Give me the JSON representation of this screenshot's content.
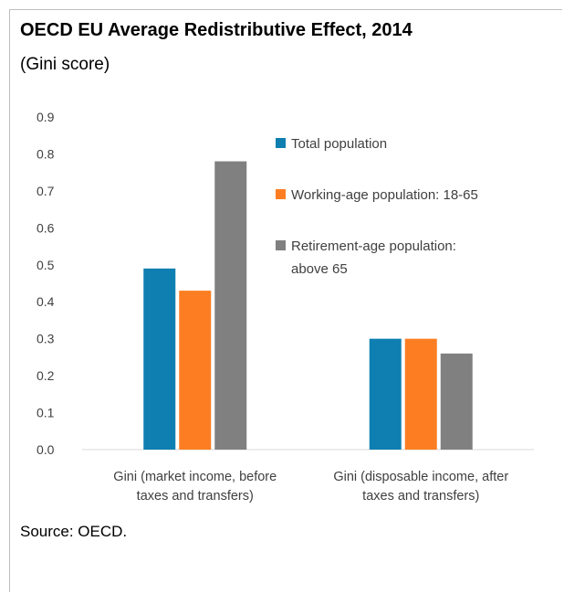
{
  "chart_data": {
    "type": "bar",
    "title": "OECD EU Average Redistributive Effect, 2014",
    "subtitle": "(Gini score)",
    "source": "Source: OECD.",
    "categories": [
      [
        "Gini (market income, before",
        "taxes and transfers)"
      ],
      [
        "Gini (disposable income, after",
        "taxes and transfers)"
      ]
    ],
    "series": [
      {
        "name": [
          "Total population"
        ],
        "color": "#0e7fb0",
        "values": [
          0.49,
          0.3
        ]
      },
      {
        "name": [
          "Working-age population: 18-65"
        ],
        "color": "#fd7e22",
        "values": [
          0.43,
          0.3
        ]
      },
      {
        "name": [
          "Retirement-age population:",
          "above 65"
        ],
        "color": "#808080",
        "values": [
          0.78,
          0.26
        ]
      }
    ],
    "ylim": [
      0,
      0.9
    ],
    "yticks": [
      "0.0",
      "0.1",
      "0.2",
      "0.3",
      "0.4",
      "0.5",
      "0.6",
      "0.7",
      "0.8",
      "0.9"
    ],
    "grid": false,
    "legend_position": "top-right"
  }
}
